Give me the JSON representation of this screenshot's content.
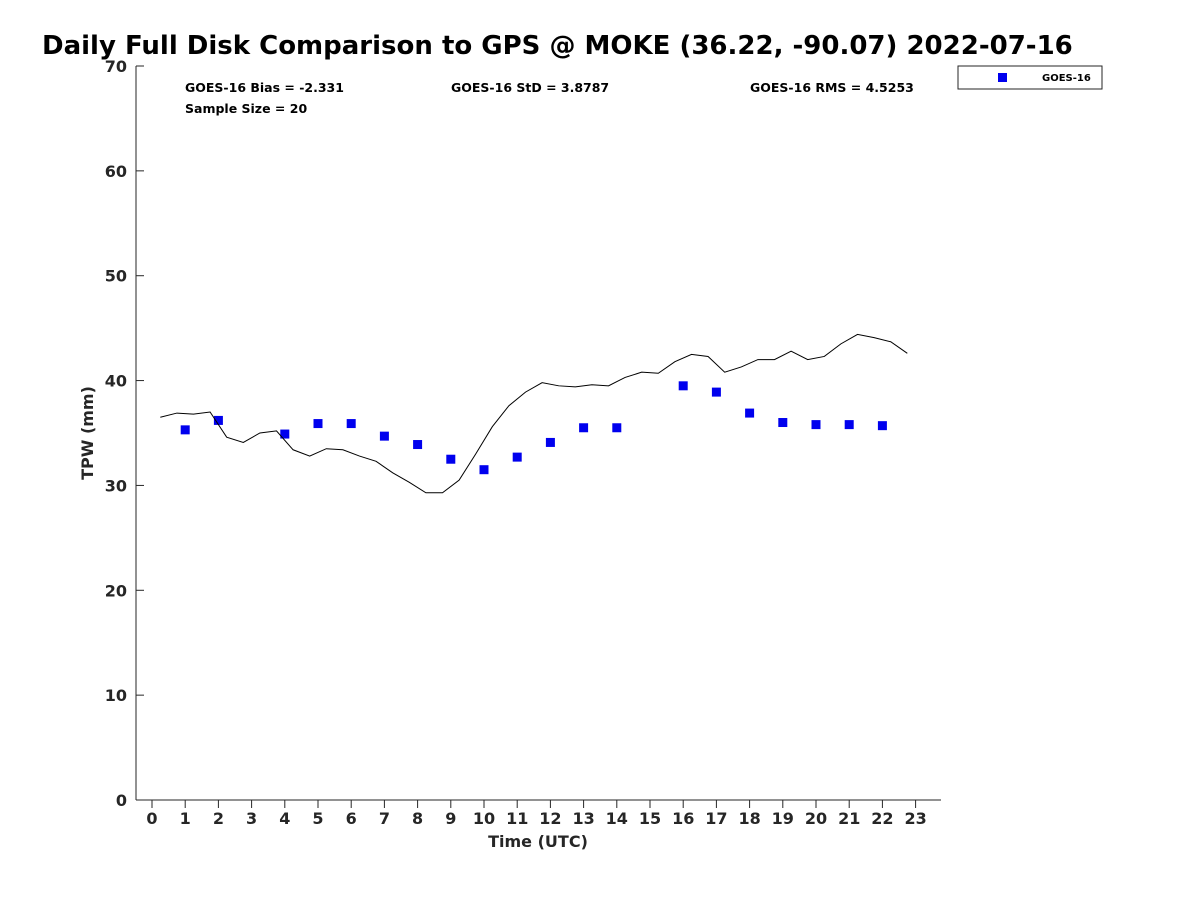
{
  "chart_data": {
    "type": "scatter",
    "title": "Daily Full Disk Comparison to GPS @ MOKE (36.22, -90.07) 2022-07-16",
    "xlabel": "Time (UTC)",
    "ylabel": "TPW (mm)",
    "xlim": [
      -0.5,
      23.8
    ],
    "ylim": [
      0,
      70
    ],
    "x_ticks": [
      "0",
      "1",
      "2",
      "3",
      "4",
      "5",
      "6",
      "7",
      "8",
      "9",
      "10",
      "11",
      "12",
      "13",
      "14",
      "15",
      "16",
      "17",
      "18",
      "19",
      "20",
      "21",
      "22",
      "23"
    ],
    "y_ticks": [
      "0",
      "10",
      "20",
      "30",
      "40",
      "50",
      "60",
      "70"
    ],
    "grid": false,
    "legend_position": "top-right (outside plot)",
    "stats": {
      "bias": "GOES-16 Bias = -2.331",
      "std": "GOES-16 StD = 3.8787",
      "rms": "GOES-16 RMS = 4.5253",
      "sample_size": "Sample Size = 20"
    },
    "series": [
      {
        "name": "GOES-16",
        "kind": "scatter",
        "marker": "square",
        "color": "#0000ee",
        "x": [
          1,
          2,
          4,
          5,
          6,
          7,
          8,
          9,
          10,
          11,
          12,
          13,
          14,
          16,
          17,
          18,
          19,
          20,
          21,
          22
        ],
        "y": [
          35.3,
          36.2,
          34.9,
          35.9,
          35.9,
          34.7,
          33.9,
          32.5,
          31.5,
          32.7,
          34.1,
          35.5,
          35.5,
          39.5,
          38.9,
          36.9,
          36.0,
          35.8,
          35.8,
          35.7
        ]
      },
      {
        "kind": "line",
        "color": "#000000",
        "x": [
          0.25,
          0.75,
          1.25,
          1.75,
          2.25,
          2.75,
          3.25,
          3.75,
          4.25,
          4.75,
          5.25,
          5.75,
          6.25,
          6.75,
          7.25,
          7.75,
          8.25,
          8.75,
          9.25,
          9.75,
          10.25,
          10.75,
          11.25,
          11.75,
          12.25,
          12.75,
          13.25,
          13.75,
          14.25,
          14.75,
          15.25,
          15.75,
          16.25,
          16.75,
          17.25,
          17.75,
          18.25,
          18.75,
          19.25,
          19.75,
          20.25,
          20.75,
          21.25,
          21.75,
          22.25,
          22.75
        ],
        "y": [
          36.5,
          36.9,
          36.8,
          37.0,
          34.6,
          34.1,
          35.0,
          35.2,
          33.4,
          32.8,
          33.5,
          33.4,
          32.8,
          32.3,
          31.2,
          30.3,
          29.3,
          29.3,
          30.5,
          33.0,
          35.6,
          37.6,
          38.9,
          39.8,
          39.5,
          39.4,
          39.6,
          39.5,
          40.3,
          40.8,
          40.7,
          41.8,
          42.5,
          42.3,
          40.8,
          41.3,
          42.0,
          42.0,
          42.8,
          42.0,
          42.3,
          43.5,
          44.4,
          44.1,
          43.7,
          42.6
        ]
      }
    ]
  }
}
